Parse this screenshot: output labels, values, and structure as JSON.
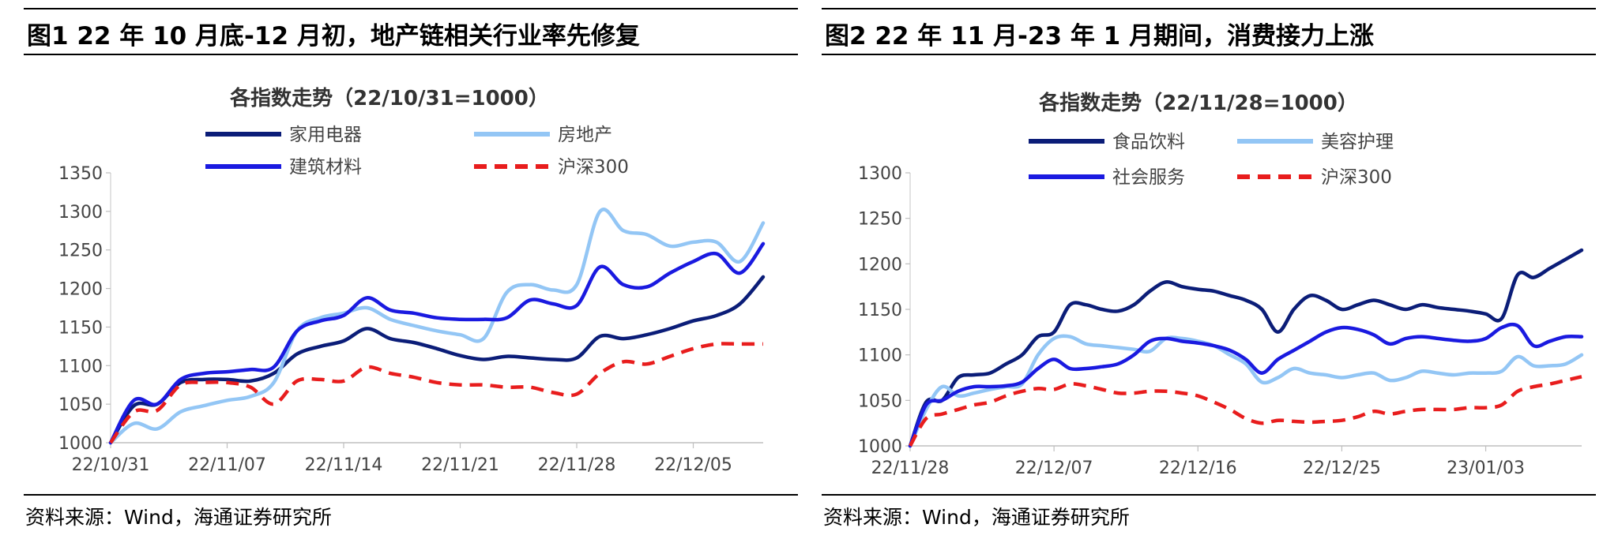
{
  "figures": [
    {
      "heading": "图1   22 年 10 月底-12 月初，地产链相关行业率先修复",
      "source": "资料来源：Wind，海通证券研究所"
    },
    {
      "heading": "图2   22 年 11 月-23 年 1 月期间，消费接力上涨",
      "source": "资料来源：Wind，海通证券研究所"
    }
  ],
  "chart_data": [
    {
      "type": "line",
      "title": "各指数走势（22/10/31=1000）",
      "xlabel": "",
      "ylabel": "",
      "ylim": [
        1000,
        1350
      ],
      "yticks": [
        1000,
        1050,
        1100,
        1150,
        1200,
        1250,
        1300,
        1350
      ],
      "x_tick_labels": [
        "22/10/31",
        "22/11/07",
        "22/11/14",
        "22/11/21",
        "22/11/28",
        "22/12/05"
      ],
      "x_tick_index": [
        0,
        5,
        10,
        15,
        20,
        25
      ],
      "n_points": 29,
      "grid": false,
      "legend_position": "top",
      "series": [
        {
          "name": "家用电器",
          "color": "#0b1d78",
          "dash": "solid",
          "values": [
            1000,
            1048,
            1050,
            1078,
            1082,
            1082,
            1080,
            1090,
            1115,
            1125,
            1132,
            1148,
            1135,
            1130,
            1122,
            1113,
            1108,
            1112,
            1110,
            1108,
            1110,
            1138,
            1135,
            1140,
            1148,
            1158,
            1165,
            1180,
            1215
          ]
        },
        {
          "name": "房地产",
          "color": "#93c6f5",
          "dash": "solid",
          "values": [
            1000,
            1025,
            1018,
            1040,
            1048,
            1055,
            1060,
            1078,
            1145,
            1162,
            1168,
            1175,
            1160,
            1152,
            1145,
            1140,
            1135,
            1195,
            1205,
            1198,
            1205,
            1300,
            1275,
            1270,
            1255,
            1260,
            1260,
            1235,
            1285
          ]
        },
        {
          "name": "建筑材料",
          "color": "#1a1ae0",
          "dash": "solid",
          "values": [
            1000,
            1055,
            1050,
            1082,
            1090,
            1092,
            1095,
            1098,
            1145,
            1158,
            1165,
            1188,
            1172,
            1168,
            1162,
            1160,
            1160,
            1162,
            1185,
            1180,
            1178,
            1228,
            1205,
            1202,
            1220,
            1235,
            1245,
            1220,
            1258
          ]
        },
        {
          "name": "沪深300",
          "color": "#e81d1d",
          "dash": "dashed",
          "values": [
            1000,
            1040,
            1042,
            1075,
            1078,
            1078,
            1072,
            1050,
            1080,
            1082,
            1080,
            1098,
            1090,
            1085,
            1078,
            1075,
            1075,
            1072,
            1072,
            1065,
            1063,
            1090,
            1105,
            1102,
            1112,
            1122,
            1128,
            1128,
            1128
          ]
        }
      ]
    },
    {
      "type": "line",
      "title": "各指数走势（22/11/28=1000）",
      "xlabel": "",
      "ylabel": "",
      "ylim": [
        1000,
        1300
      ],
      "yticks": [
        1000,
        1050,
        1100,
        1150,
        1200,
        1250,
        1300
      ],
      "x_tick_labels": [
        "22/11/28",
        "22/12/07",
        "22/12/16",
        "22/12/25",
        "23/01/03"
      ],
      "x_tick_index": [
        0,
        9,
        18,
        27,
        36
      ],
      "n_points": 43,
      "grid": false,
      "legend_position": "top",
      "series": [
        {
          "name": "食品饮料",
          "color": "#0b1d78",
          "dash": "solid",
          "values": [
            1000,
            1048,
            1050,
            1075,
            1078,
            1080,
            1090,
            1100,
            1120,
            1125,
            1155,
            1155,
            1150,
            1148,
            1155,
            1170,
            1180,
            1175,
            1172,
            1170,
            1165,
            1160,
            1150,
            1125,
            1150,
            1165,
            1160,
            1150,
            1155,
            1160,
            1155,
            1150,
            1155,
            1152,
            1150,
            1148,
            1145,
            1140,
            1188,
            1185,
            1195,
            1205,
            1215
          ]
        },
        {
          "name": "美容护理",
          "color": "#93c6f5",
          "dash": "solid",
          "values": [
            1000,
            1040,
            1065,
            1055,
            1058,
            1062,
            1065,
            1068,
            1100,
            1118,
            1120,
            1112,
            1110,
            1108,
            1106,
            1104,
            1118,
            1118,
            1115,
            1110,
            1100,
            1090,
            1070,
            1075,
            1085,
            1080,
            1078,
            1075,
            1078,
            1080,
            1072,
            1075,
            1082,
            1080,
            1078,
            1080,
            1080,
            1082,
            1098,
            1088,
            1088,
            1090,
            1100
          ]
        },
        {
          "name": "社会服务",
          "color": "#1a1ae0",
          "dash": "solid",
          "values": [
            1000,
            1045,
            1050,
            1060,
            1065,
            1065,
            1066,
            1070,
            1085,
            1095,
            1085,
            1085,
            1087,
            1090,
            1100,
            1115,
            1118,
            1115,
            1113,
            1110,
            1105,
            1095,
            1080,
            1095,
            1105,
            1115,
            1125,
            1130,
            1128,
            1122,
            1112,
            1118,
            1120,
            1118,
            1116,
            1115,
            1118,
            1130,
            1132,
            1110,
            1115,
            1120,
            1120
          ]
        },
        {
          "name": "沪深300",
          "color": "#e81d1d",
          "dash": "dashed",
          "values": [
            1000,
            1030,
            1035,
            1040,
            1045,
            1048,
            1055,
            1060,
            1063,
            1062,
            1068,
            1066,
            1062,
            1058,
            1058,
            1060,
            1060,
            1058,
            1055,
            1048,
            1040,
            1030,
            1025,
            1028,
            1027,
            1026,
            1027,
            1028,
            1032,
            1038,
            1035,
            1038,
            1040,
            1040,
            1040,
            1042,
            1042,
            1045,
            1060,
            1065,
            1068,
            1072,
            1076
          ]
        }
      ]
    }
  ]
}
